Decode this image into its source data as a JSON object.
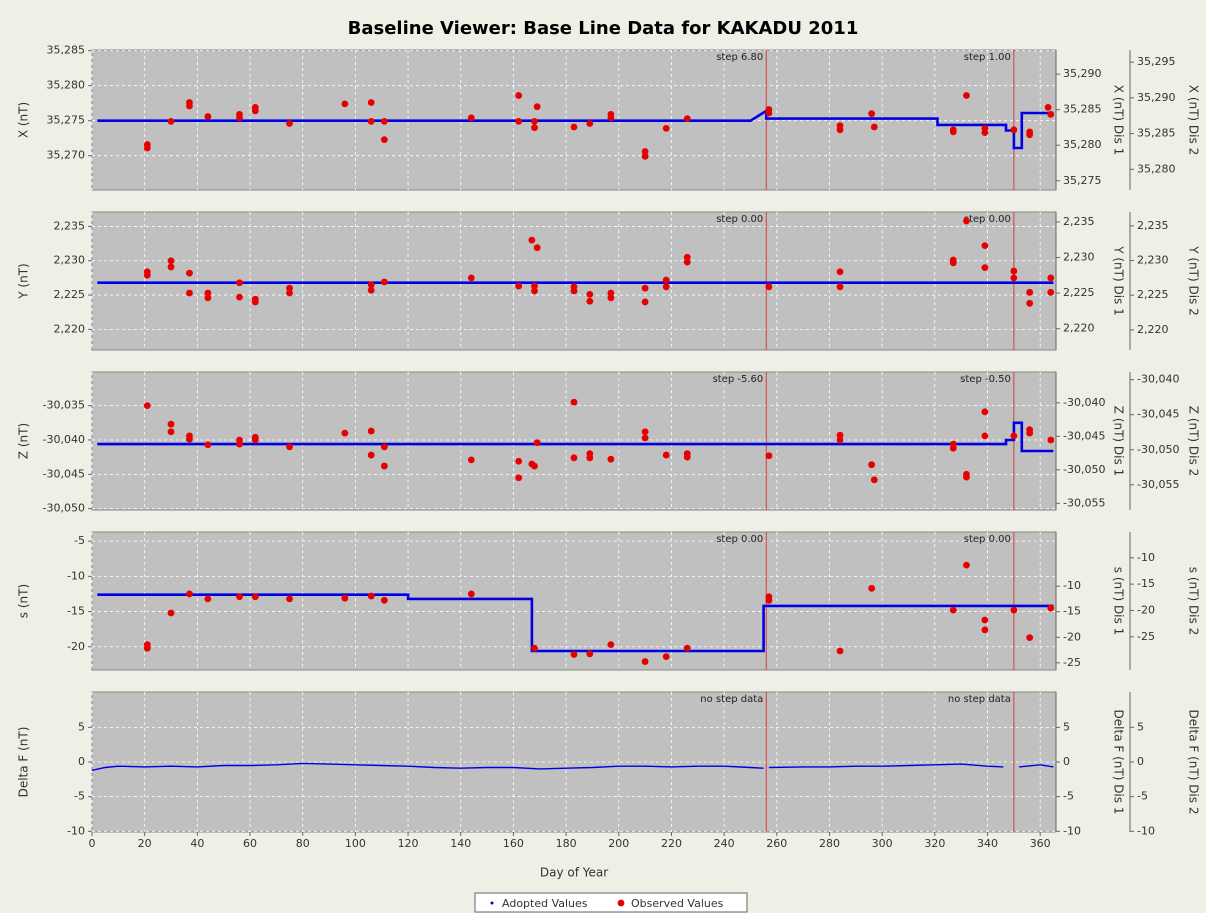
{
  "title": "Baseline Viewer: Base Line Data for KAKADU 2011",
  "x_axis": {
    "label": "Day of Year",
    "lim": [
      0,
      366
    ],
    "ticks": [
      0,
      20,
      40,
      60,
      80,
      100,
      120,
      140,
      160,
      180,
      200,
      220,
      240,
      260,
      280,
      300,
      320,
      340,
      360
    ]
  },
  "legend": [
    {
      "name": "Adopted Values",
      "color": "#0000e6"
    },
    {
      "name": "Observed Values",
      "color": "#e60000"
    }
  ],
  "grid": true,
  "chart_data": [
    {
      "type": "baseline",
      "ylabel": "X (nT)",
      "y2label": "X (nT)  Dis 1",
      "y3label": "X (nT)  Dis 2",
      "ylim": [
        35265.1,
        35285.1
      ],
      "yticks": [
        {
          "value": 35270,
          "label": "35,270"
        },
        {
          "value": 35275,
          "label": "35,275"
        },
        {
          "value": 35280,
          "label": "35,280"
        },
        {
          "value": 35285,
          "label": "35,285"
        }
      ],
      "y2lim": [
        35273.7,
        35293.4
      ],
      "y2ticks": [
        {
          "value": 35275,
          "label": "35,275"
        },
        {
          "value": 35280,
          "label": "35,280"
        },
        {
          "value": 35285,
          "label": "35,285"
        },
        {
          "value": 35290,
          "label": "35,290"
        }
      ],
      "y3lim": [
        35277.1,
        35296.7
      ],
      "y3ticks": [
        {
          "value": 35280,
          "label": "35,280"
        },
        {
          "value": 35285,
          "label": "35,285"
        },
        {
          "value": 35290,
          "label": "35,290"
        },
        {
          "value": 35295,
          "label": "35,295"
        }
      ],
      "steps": [
        {
          "x": 256,
          "label": "step 6.80"
        },
        {
          "x": 350,
          "label": "step 1.00"
        }
      ],
      "adopted": {
        "x": [
          2,
          250,
          256,
          256,
          321,
          321,
          347,
          347,
          350,
          350,
          353,
          353,
          365
        ],
        "values": [
          35275,
          35275,
          35276.4,
          35275.3,
          35275.3,
          35274.4,
          35274.4,
          35273.6,
          35273.6,
          35271.1,
          35271.1,
          35276.1,
          35276.1
        ]
      },
      "observed": {
        "x": [
          21,
          21,
          30,
          37,
          37,
          44,
          56,
          56,
          62,
          62,
          75,
          96,
          106,
          106,
          111,
          111,
          144,
          162,
          162,
          168,
          168,
          169,
          183,
          189,
          197,
          197,
          210,
          210,
          218,
          226,
          257,
          257,
          284,
          284,
          296,
          297,
          327,
          327,
          332,
          339,
          339,
          350,
          356,
          356,
          363,
          364
        ],
        "values": [
          35271.6,
          35271.1,
          35274.9,
          35277.6,
          35277.1,
          35275.6,
          35275.9,
          35275.4,
          35276.9,
          35276.4,
          35274.6,
          35277.4,
          35277.6,
          35274.9,
          35274.9,
          35272.3,
          35275.4,
          35278.6,
          35274.9,
          35274.9,
          35274,
          35277,
          35274.1,
          35274.6,
          35275.9,
          35275.4,
          35270.6,
          35269.9,
          35273.9,
          35275.3,
          35276.6,
          35276.1,
          35274.3,
          35273.7,
          35276,
          35274.1,
          35273.7,
          35273.4,
          35278.6,
          35273.9,
          35273.3,
          35273.7,
          35273.4,
          35273,
          35276.9,
          35275.9
        ]
      }
    },
    {
      "type": "baseline",
      "ylabel": "Y (nT)",
      "y2label": "Y (nT)  Dis 1",
      "y3label": "Y (nT)  Dis 2",
      "ylim": [
        2217,
        2237.1
      ],
      "yticks": [
        {
          "value": 2220,
          "label": "2,220"
        },
        {
          "value": 2225,
          "label": "2,225"
        },
        {
          "value": 2230,
          "label": "2,230"
        },
        {
          "value": 2235,
          "label": "2,235"
        }
      ],
      "y2lim": [
        2217,
        2236.4
      ],
      "y2ticks": [
        {
          "value": 2220,
          "label": "2,220"
        },
        {
          "value": 2225,
          "label": "2,225"
        },
        {
          "value": 2230,
          "label": "2,230"
        },
        {
          "value": 2235,
          "label": "2,235"
        }
      ],
      "y3lim": [
        2217.1,
        2237
      ],
      "y3ticks": [
        {
          "value": 2220,
          "label": "2,220"
        },
        {
          "value": 2225,
          "label": "2,225"
        },
        {
          "value": 2230,
          "label": "2,230"
        },
        {
          "value": 2235,
          "label": "2,235"
        }
      ],
      "steps": [
        {
          "x": 256,
          "label": "step 0.00"
        },
        {
          "x": 350,
          "label": "step 0.00"
        }
      ],
      "adopted": {
        "x": [
          2,
          365
        ],
        "values": [
          2226.8,
          2226.8
        ]
      },
      "observed": {
        "x": [
          21,
          21,
          30,
          30,
          37,
          37,
          44,
          44,
          56,
          56,
          62,
          62,
          75,
          75,
          106,
          106,
          111,
          144,
          162,
          167,
          168,
          168,
          169,
          183,
          183,
          189,
          189,
          197,
          197,
          210,
          210,
          218,
          218,
          226,
          226,
          257,
          284,
          284,
          327,
          327,
          332,
          339,
          339,
          350,
          350,
          356,
          356,
          364,
          364
        ],
        "values": [
          2228.4,
          2227.9,
          2230,
          2229.1,
          2228.2,
          2225.3,
          2225.3,
          2224.6,
          2226.8,
          2224.7,
          2224.4,
          2224,
          2226,
          2225.3,
          2226.5,
          2225.7,
          2226.9,
          2227.5,
          2226.3,
          2233,
          2226.3,
          2225.6,
          2231.9,
          2226.2,
          2225.6,
          2225.1,
          2224.1,
          2225.3,
          2224.6,
          2226,
          2224,
          2227.2,
          2226.2,
          2230.5,
          2229.8,
          2226.2,
          2228.4,
          2226.2,
          2230.1,
          2229.7,
          2235.8,
          2232.2,
          2229,
          2228.5,
          2227.5,
          2225.4,
          2223.8,
          2227.5,
          2225.4
        ]
      }
    },
    {
      "type": "baseline",
      "ylabel": "Z (nT)",
      "y2label": "Z (nT)  Dis 1",
      "y3label": "Z (nT)  Dis 2",
      "ylim": [
        -30050.2,
        -30030.1
      ],
      "yticks": [
        {
          "value": -30050,
          "label": "-30,050"
        },
        {
          "value": -30045,
          "label": "-30,045"
        },
        {
          "value": -30040,
          "label": "-30,040"
        },
        {
          "value": -30035,
          "label": "-30,035"
        }
      ],
      "y2lim": [
        -30056,
        -30035.4
      ],
      "y2ticks": [
        {
          "value": -30055,
          "label": "-30,055"
        },
        {
          "value": -30050,
          "label": "-30,050"
        },
        {
          "value": -30045,
          "label": "-30,045"
        },
        {
          "value": -30040,
          "label": "-30,040"
        }
      ],
      "y3lim": [
        -30058.6,
        -30038.9
      ],
      "y3ticks": [
        {
          "value": -30055,
          "label": "-30,055"
        },
        {
          "value": -30050,
          "label": "-30,050"
        },
        {
          "value": -30045,
          "label": "-30,045"
        },
        {
          "value": -30040,
          "label": "-30,040"
        }
      ],
      "steps": [
        {
          "x": 256,
          "label": "step -5.60"
        },
        {
          "x": 350,
          "label": "step -0.50"
        }
      ],
      "adopted": {
        "x": [
          2,
          347,
          347,
          350,
          350,
          353,
          353,
          365
        ],
        "values": [
          -30040.6,
          -30040.6,
          -30040,
          -30040,
          -30037.5,
          -30037.5,
          -30041.6,
          -30041.6
        ]
      },
      "observed": {
        "x": [
          21,
          30,
          30,
          37,
          37,
          44,
          56,
          56,
          62,
          62,
          75,
          96,
          106,
          106,
          111,
          111,
          144,
          162,
          162,
          167,
          168,
          169,
          183,
          183,
          189,
          189,
          197,
          210,
          210,
          218,
          226,
          226,
          257,
          284,
          284,
          296,
          297,
          327,
          327,
          332,
          332,
          339,
          339,
          350,
          356,
          356,
          364
        ],
        "values": [
          -30035,
          -30037.7,
          -30038.8,
          -30039.4,
          -30039.9,
          -30040.7,
          -30040,
          -30040.6,
          -30039.6,
          -30040,
          -30041,
          -30039,
          -30038.7,
          -30042.2,
          -30041,
          -30043.8,
          -30042.9,
          -30043.1,
          -30045.5,
          -30043.5,
          -30043.8,
          -30040.4,
          -30034.5,
          -30042.6,
          -30042,
          -30042.6,
          -30042.8,
          -30038.8,
          -30039.7,
          -30042.2,
          -30042,
          -30042.5,
          -30042.3,
          -30039.3,
          -30040,
          -30043.6,
          -30045.8,
          -30040.6,
          -30041.2,
          -30045,
          -30045.4,
          -30035.9,
          -30039.4,
          -30039.4,
          -30038.5,
          -30039,
          -30040
        ]
      }
    },
    {
      "type": "baseline",
      "ylabel": "s (nT)",
      "y2label": "s (nT)  Dis 1",
      "y3label": "s (nT)  Dis 2",
      "ylim": [
        -23.3,
        -3.7
      ],
      "yticks": [
        -20,
        -15,
        -10,
        -5
      ],
      "y2lim": [
        -26.4,
        0.6
      ],
      "y2ticks": [
        -25,
        -20,
        -15,
        -10
      ],
      "y3lim": [
        -31.3,
        -5.1
      ],
      "y3ticks": [
        -25,
        -20,
        -15,
        -10
      ],
      "steps": [
        {
          "x": 256,
          "label": "step 0.00"
        },
        {
          "x": 350,
          "label": "step 0.00"
        }
      ],
      "adopted": {
        "x": [
          2,
          120,
          120,
          167,
          167,
          255,
          255,
          365
        ],
        "values": [
          -12.6,
          -12.6,
          -13.2,
          -13.2,
          -20.6,
          -20.6,
          -14.2,
          -14.2
        ]
      },
      "observed": {
        "x": [
          21,
          21,
          30,
          37,
          44,
          56,
          62,
          75,
          96,
          106,
          111,
          144,
          168,
          183,
          189,
          197,
          210,
          218,
          226,
          257,
          257,
          284,
          296,
          327,
          332,
          339,
          339,
          350,
          356,
          364
        ],
        "values": [
          -19.7,
          -20.2,
          -15.2,
          -12.5,
          -13.2,
          -12.9,
          -12.9,
          -13.2,
          -13.1,
          -12.8,
          -13.4,
          -12.5,
          -20.2,
          -21.1,
          -21,
          -19.7,
          -22.1,
          -21.4,
          -20.2,
          -12.9,
          -13.4,
          -20.6,
          -11.7,
          -14.8,
          -8.4,
          -16.2,
          -17.6,
          -14.8,
          -18.7,
          -14.5
        ]
      }
    },
    {
      "type": "baseline",
      "ylabel": "Delta F (nT)",
      "y2label": "Delta F (nT)  Dis 1",
      "y3label": "Delta F (nT)  Dis 2",
      "ylim": [
        -10.1,
        10.1
      ],
      "yticks": [
        -10,
        -5,
        0,
        5
      ],
      "y2lim": [
        -10.1,
        10.1
      ],
      "y2ticks": [
        -10,
        -5,
        0,
        5
      ],
      "y3lim": [
        -10.1,
        10.1
      ],
      "y3ticks": [
        -10,
        -5,
        0,
        5
      ],
      "steps": [
        {
          "x": 256,
          "label": "no step data"
        },
        {
          "x": 350,
          "label": "no step data"
        }
      ],
      "adopted": {
        "x": [
          0,
          5,
          10,
          20,
          30,
          40,
          50,
          60,
          70,
          80,
          90,
          100,
          110,
          120,
          130,
          140,
          150,
          160,
          170,
          180,
          190,
          200,
          210,
          220,
          230,
          240,
          250,
          255,
          256,
          257,
          270,
          280,
          290,
          300,
          310,
          320,
          330,
          340,
          346,
          349,
          352,
          360,
          365
        ],
        "values": [
          -1.2,
          -0.8,
          -0.6,
          -0.7,
          -0.6,
          -0.7,
          -0.5,
          -0.5,
          -0.4,
          -0.2,
          -0.3,
          -0.4,
          -0.5,
          -0.6,
          -0.8,
          -0.9,
          -0.8,
          -0.8,
          -1.0,
          -0.9,
          -0.8,
          -0.6,
          -0.6,
          -0.7,
          -0.6,
          -0.6,
          -0.8,
          -0.9,
          null,
          -0.8,
          -0.7,
          -0.7,
          -0.6,
          -0.6,
          -0.5,
          -0.4,
          -0.3,
          -0.6,
          -0.7,
          null,
          -0.7,
          -0.4,
          -0.7
        ]
      },
      "observed": {
        "x": [],
        "values": []
      }
    }
  ]
}
